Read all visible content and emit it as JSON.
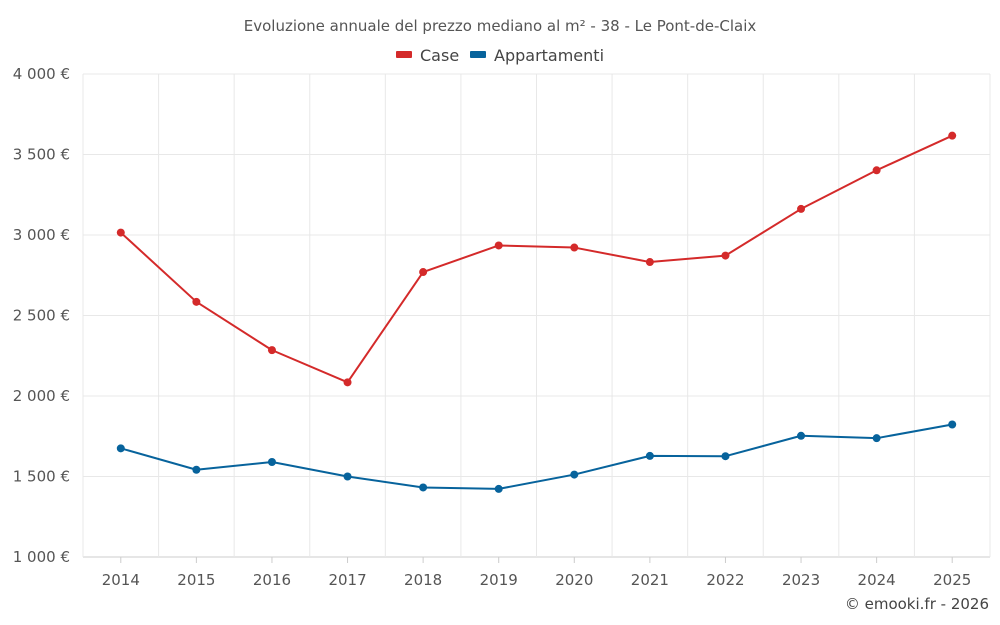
{
  "chart_data": {
    "type": "line",
    "title": "Evoluzione annuale del prezzo mediano al m² - 38 - Le Pont-de-Claix",
    "categories": [
      "2014",
      "2015",
      "2016",
      "2017",
      "2018",
      "2019",
      "2020",
      "2021",
      "2022",
      "2023",
      "2024",
      "2025"
    ],
    "series": [
      {
        "name": "Case",
        "color": "#d42a2a",
        "values": [
          3015,
          2585,
          2285,
          2085,
          2770,
          2935,
          2922,
          2832,
          2872,
          3162,
          3402,
          3617
        ]
      },
      {
        "name": "Appartamenti",
        "color": "#07639c",
        "values": [
          1675,
          1542,
          1590,
          1500,
          1432,
          1423,
          1512,
          1628,
          1626,
          1753,
          1738,
          1823
        ]
      }
    ],
    "ylim": [
      1000,
      4000
    ],
    "yticks": [
      1000,
      1500,
      2000,
      2500,
      3000,
      3500,
      4000
    ],
    "ytick_labels": [
      "1 000 €",
      "1 500 €",
      "2 000 €",
      "2 500 €",
      "3 000 €",
      "3 500 €",
      "4 000 €"
    ],
    "xlabel": "",
    "ylabel": "",
    "grid": true,
    "legend_position": "top-center"
  },
  "credit": "© emooki.fr - 2026"
}
